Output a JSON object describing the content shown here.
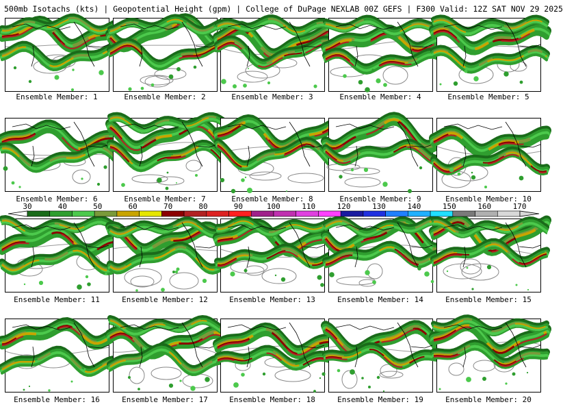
{
  "header": {
    "title": "500mb Isotachs (kts) | Geopotential Height (gpm) | College of DuPage NEXLAB   00Z GEFS | F300 Valid: 12Z SAT NOV 29 2025"
  },
  "members": [
    "Ensemble Member: 1",
    "Ensemble Member: 2",
    "Ensemble Member: 3",
    "Ensemble Member: 4",
    "Ensemble Member: 5",
    "Ensemble Member: 6",
    "Ensemble Member: 7",
    "Ensemble Member: 8",
    "Ensemble Member: 9",
    "Ensemble Member: 10",
    "Ensemble Member: 11",
    "Ensemble Member: 12",
    "Ensemble Member: 13",
    "Ensemble Member: 14",
    "Ensemble Member: 15",
    "Ensemble Member: 16",
    "Ensemble Member: 17",
    "Ensemble Member: 18",
    "Ensemble Member: 19",
    "Ensemble Member: 20"
  ],
  "colorbar": {
    "labels": [
      "30",
      "40",
      "50",
      "60",
      "70",
      "80",
      "90",
      "100",
      "110",
      "120",
      "130",
      "140",
      "150",
      "160",
      "170"
    ],
    "colors": [
      "#1a6b1a",
      "#2f9e2f",
      "#4cc94c",
      "#7a9a3a",
      "#c8a400",
      "#e6e600",
      "#8b0000",
      "#b22222",
      "#dd2222",
      "#ff2020",
      "#a0208a",
      "#c030b0",
      "#e040e0",
      "#ff40ff",
      "#1a1aa0",
      "#2030e0",
      "#2080ff",
      "#20b0ff",
      "#20e0ff",
      "#7a7a7a",
      "#b0b0b0",
      "#d8d8d8"
    ]
  }
}
